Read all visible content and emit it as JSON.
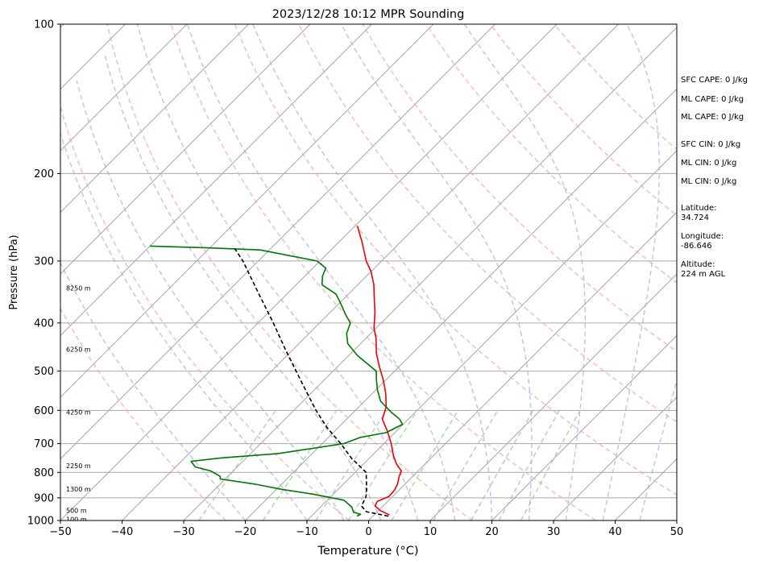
{
  "chart_data": {
    "type": "line",
    "title": "2023/12/28 10:12 MPR Sounding",
    "xlabel": "Temperature (°C)",
    "ylabel": "Pressure (hPa)",
    "xlim": [
      -50,
      50
    ],
    "ylim": [
      1000,
      100
    ],
    "yscale": "log",
    "skew": true,
    "grid": true,
    "x_ticks": [
      -50,
      -40,
      -30,
      -20,
      -10,
      0,
      10,
      20,
      30,
      40,
      50
    ],
    "x_tick_labels": [
      "−50",
      "−40",
      "−30",
      "−20",
      "−10",
      "0",
      "10",
      "20",
      "30",
      "40",
      "50"
    ],
    "y_ticks": [
      1000,
      900,
      800,
      700,
      600,
      500,
      400,
      300,
      200,
      100
    ],
    "y_tick_labels": [
      "1000",
      "900",
      "800",
      "700",
      "600",
      "500",
      "400",
      "300",
      "200",
      "100"
    ],
    "series": [
      {
        "role": "temperature",
        "color": "#ee0000",
        "points": [
          [
            975,
            2.5
          ],
          [
            955,
            0.3
          ],
          [
            935,
            -1.3
          ],
          [
            915,
            -1.7
          ],
          [
            895,
            -0.6
          ],
          [
            870,
            -0.7
          ],
          [
            845,
            -1.2
          ],
          [
            815,
            -2.2
          ],
          [
            795,
            -2.7
          ],
          [
            770,
            -4.6
          ],
          [
            740,
            -6.5
          ],
          [
            700,
            -8.8
          ],
          [
            660,
            -11.5
          ],
          [
            625,
            -14.2
          ],
          [
            590,
            -15.6
          ],
          [
            555,
            -17.8
          ],
          [
            520,
            -20.5
          ],
          [
            490,
            -23.2
          ],
          [
            460,
            -25.9
          ],
          [
            430,
            -28.3
          ],
          [
            410,
            -30.3
          ],
          [
            380,
            -32.8
          ],
          [
            360,
            -34.8
          ],
          [
            335,
            -37.4
          ],
          [
            315,
            -40.0
          ],
          [
            300,
            -42.5
          ],
          [
            275,
            -46.2
          ],
          [
            255,
            -49.6
          ]
        ]
      },
      {
        "role": "dewpoint",
        "color": "#007700",
        "points": [
          [
            980,
            -2.6
          ],
          [
            972,
            -2.3
          ],
          [
            962,
            -3.8
          ],
          [
            940,
            -4.9
          ],
          [
            910,
            -7.3
          ],
          [
            885,
            -13.3
          ],
          [
            865,
            -19.3
          ],
          [
            845,
            -24.3
          ],
          [
            825,
            -30.8
          ],
          [
            815,
            -31.2
          ],
          [
            805,
            -32.4
          ],
          [
            795,
            -33.6
          ],
          [
            780,
            -36.8
          ],
          [
            760,
            -38.4
          ],
          [
            748,
            -34.0
          ],
          [
            733,
            -25.5
          ],
          [
            700,
            -16.5
          ],
          [
            680,
            -14.8
          ],
          [
            665,
            -11.4
          ],
          [
            640,
            -10.1
          ],
          [
            625,
            -11.4
          ],
          [
            605,
            -13.9
          ],
          [
            575,
            -17.4
          ],
          [
            545,
            -19.8
          ],
          [
            520,
            -21.6
          ],
          [
            500,
            -23.0
          ],
          [
            465,
            -28.6
          ],
          [
            440,
            -32.1
          ],
          [
            420,
            -33.9
          ],
          [
            400,
            -35.0
          ],
          [
            385,
            -37.1
          ],
          [
            365,
            -39.8
          ],
          [
            350,
            -42.0
          ],
          [
            335,
            -45.8
          ],
          [
            322,
            -47.1
          ],
          [
            310,
            -47.9
          ],
          [
            300,
            -50.5
          ],
          [
            285,
            -61.5
          ],
          [
            282,
            -71.0
          ],
          [
            280,
            -80.0
          ]
        ]
      },
      {
        "role": "parcel-path",
        "color": "#000000",
        "dashed": true,
        "points": [
          [
            980,
            2.5
          ],
          [
            960,
            -1.8
          ],
          [
            935,
            -3.5
          ],
          [
            895,
            -4.3
          ],
          [
            860,
            -5.6
          ],
          [
            800,
            -8.2
          ],
          [
            750,
            -12.8
          ],
          [
            700,
            -17.0
          ],
          [
            650,
            -21.8
          ],
          [
            600,
            -26.4
          ],
          [
            550,
            -31.0
          ],
          [
            500,
            -36.0
          ],
          [
            450,
            -41.5
          ],
          [
            400,
            -47.5
          ],
          [
            350,
            -54.5
          ],
          [
            300,
            -62.5
          ],
          [
            280,
            -66.5
          ]
        ]
      }
    ],
    "height_labels": [
      {
        "p": 995,
        "text": "100 m"
      },
      {
        "p": 955,
        "text": "500 m"
      },
      {
        "p": 865,
        "text": "1300 m"
      },
      {
        "p": 775,
        "text": "2250 m"
      },
      {
        "p": 605,
        "text": "4250 m"
      },
      {
        "p": 452,
        "text": "6250 m"
      },
      {
        "p": 340,
        "text": "8250 m"
      }
    ],
    "annotations": [
      "SFC CAPE: 0 J/kg",
      "ML CAPE: 0 J/kg",
      "ML CAPE: 0 J/kg",
      "SFC CIN: 0 J/kg",
      "ML CIN: 0 J/kg",
      "ML CIN: 0 J/kg",
      "Latitude:",
      "34.724",
      "Longitude:",
      "-86.646",
      "Altitude:",
      "224 m AGL"
    ],
    "reference_lines": {
      "dry_adiabats_theta_K": [
        250,
        270,
        290,
        310,
        330,
        350,
        370,
        390,
        410,
        430
      ],
      "moist_adiabats_start_T": [
        -20,
        -10,
        -4,
        2,
        8,
        14,
        20,
        26,
        32,
        38,
        44
      ],
      "mixing_ratio_gkg": [
        0.4,
        1,
        2,
        3,
        5,
        8,
        12,
        16,
        20
      ],
      "colors": {
        "dry_adiabat": "#f4a6a6",
        "moist_adiabat": "#a8a0ee",
        "mixing_ratio": "#8fcc8f",
        "grid": "#a8a8a8"
      }
    }
  }
}
